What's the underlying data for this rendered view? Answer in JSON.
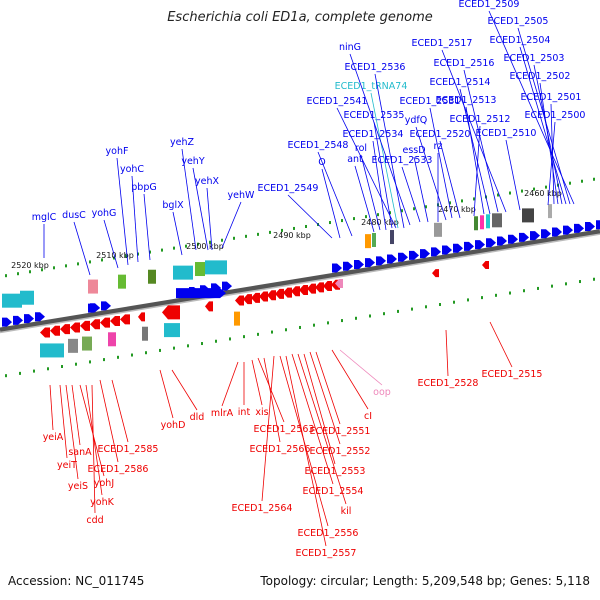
{
  "title": "Escherichia coli ED1a, complete genome",
  "footer": {
    "accession": "Accession: NC_011745",
    "summary": "Topology: circular; Length: 5,209,548 bp; Genes: 5,118"
  },
  "colors": {
    "forward": "#0000ee",
    "reverse": "#ee0000",
    "trna": "#22bbcc",
    "pseudo": "#ee88bb",
    "backbone": "#777777",
    "tick": "#229922"
  },
  "scale": [
    "2520 kbp",
    "2510 kbp",
    "2500 kbp",
    "2490 kbp",
    "2480 kbp",
    "2470 kbp",
    "2460 kbp"
  ],
  "top_labels": [
    "mglC",
    "dusC",
    "yohG",
    "yohF",
    "yohC",
    "pbpG",
    "bglX",
    "yehZ",
    "yehY",
    "yehX",
    "yehW",
    "ECED1_2549",
    "O",
    "ECED1_2548",
    "ant",
    "rol",
    "ECED1_2534",
    "ECED1_2535",
    "ECED1_2541",
    "ECED1_tRNA74",
    "ECED1_2536",
    "ninG",
    "ECED1_2533",
    "essD",
    "rz",
    "ydfQ",
    "ECED1_2531",
    "ECED1_2520",
    "ECED1_2512",
    "ECED1_2513",
    "ECED1_2514",
    "ECED1_2516",
    "ECED1_2517",
    "ECED1_2510",
    "ECED1_2500",
    "ECED1_2501",
    "ECED1_2502",
    "ECED1_2503",
    "ECED1_2504",
    "ECED1_2505",
    "ECED1_2509"
  ],
  "bottom_labels": [
    "yeiA",
    "yeiT",
    "yeiS",
    "sanA",
    "yohJ",
    "yohK",
    "cdd",
    "ECED1_2585",
    "ECED1_2586",
    "yohD",
    "dld",
    "mlrA",
    "int",
    "xis",
    "ECED1_2563",
    "ECED1_2566",
    "ECED1_2564",
    "ECED1_2556",
    "ECED1_2557",
    "ECED1_2554",
    "kil",
    "ECED1_2553",
    "ECED1_2552",
    "ECED1_2551",
    "cI",
    "oop",
    "ECED1_2528",
    "ECED1_2515"
  ]
}
